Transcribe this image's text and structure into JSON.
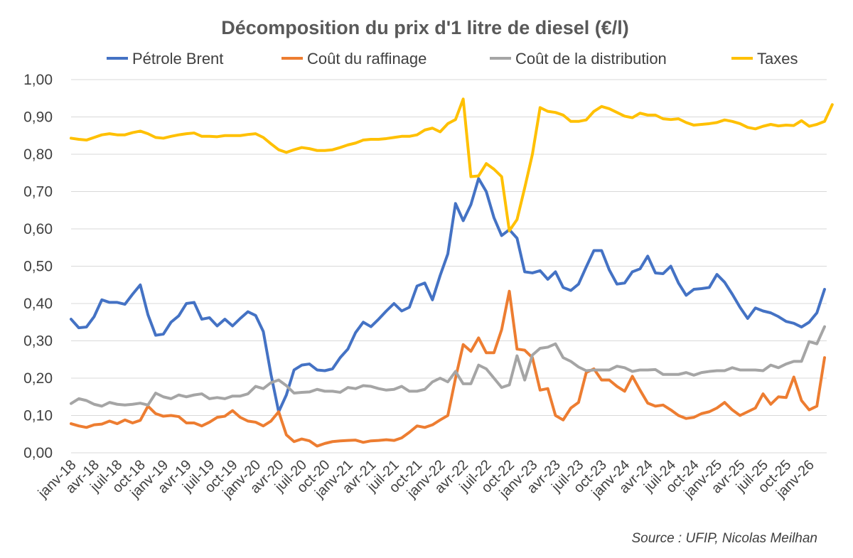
{
  "chart_data": {
    "type": "line",
    "title": "Décomposition du prix d'1 litre de diesel (€/l)",
    "xlabel": "",
    "ylabel": "",
    "ylim": [
      0,
      1
    ],
    "y_ticks": [
      "0,00",
      "0,10",
      "0,20",
      "0,30",
      "0,40",
      "0,50",
      "0,60",
      "0,70",
      "0,80",
      "0,90",
      "1,00"
    ],
    "y_tick_values": [
      0,
      0.1,
      0.2,
      0.3,
      0.4,
      0.5,
      0.6,
      0.7,
      0.8,
      0.9,
      1.0
    ],
    "grid": true,
    "legend_position": "top",
    "x_labels": [
      "janv-18",
      "avr-18",
      "juil-18",
      "oct-18",
      "janv-19",
      "avr-19",
      "juil-19",
      "oct-19",
      "janv-20",
      "avr-20",
      "juil-20",
      "oct-20",
      "janv-21",
      "avr-21",
      "juil-21",
      "oct-21",
      "janv-22",
      "avr-22",
      "juil-22",
      "oct-22",
      "janv-23",
      "avr-23",
      "juil-23",
      "oct-23",
      "janv-24",
      "avr-24",
      "juil-24",
      "oct-24",
      "janv-25",
      "avr-25",
      "juil-25",
      "oct-25",
      "janv-26"
    ],
    "x_label_step_months": 3,
    "n_points": 99,
    "series": [
      {
        "name": "Pétrole Brent",
        "color": "#4472c4",
        "values": [
          0.358,
          0.335,
          0.337,
          0.365,
          0.41,
          0.403,
          0.403,
          0.398,
          0.425,
          0.45,
          0.37,
          0.315,
          0.318,
          0.35,
          0.367,
          0.4,
          0.403,
          0.358,
          0.362,
          0.34,
          0.358,
          0.34,
          0.36,
          0.378,
          0.368,
          0.325,
          0.21,
          0.11,
          0.155,
          0.222,
          0.235,
          0.238,
          0.222,
          0.22,
          0.225,
          0.255,
          0.278,
          0.322,
          0.35,
          0.338,
          0.358,
          0.38,
          0.4,
          0.38,
          0.39,
          0.447,
          0.455,
          0.41,
          0.475,
          0.533,
          0.668,
          0.622,
          0.665,
          0.735,
          0.7,
          0.63,
          0.582,
          0.598,
          0.575,
          0.485,
          0.482,
          0.488,
          0.465,
          0.485,
          0.443,
          0.435,
          0.452,
          0.498,
          0.542,
          0.542,
          0.49,
          0.452,
          0.455,
          0.485,
          0.493,
          0.527,
          0.482,
          0.48,
          0.5,
          0.455,
          0.422,
          0.438,
          0.44,
          0.443,
          0.478,
          0.457,
          0.425,
          0.39,
          0.36,
          0.388,
          0.38,
          0.375,
          0.365,
          0.352,
          0.347,
          0.337,
          0.35,
          0.375,
          0.438
        ]
      },
      {
        "name": "Coût du raffinage",
        "color": "#ed7d31",
        "values": [
          0.078,
          0.072,
          0.068,
          0.075,
          0.077,
          0.085,
          0.078,
          0.088,
          0.08,
          0.087,
          0.125,
          0.105,
          0.098,
          0.1,
          0.097,
          0.08,
          0.08,
          0.072,
          0.082,
          0.095,
          0.098,
          0.113,
          0.095,
          0.085,
          0.082,
          0.072,
          0.085,
          0.11,
          0.048,
          0.03,
          0.037,
          0.032,
          0.018,
          0.025,
          0.03,
          0.032,
          0.033,
          0.034,
          0.028,
          0.032,
          0.033,
          0.035,
          0.033,
          0.04,
          0.055,
          0.072,
          0.068,
          0.075,
          0.088,
          0.1,
          0.2,
          0.29,
          0.272,
          0.308,
          0.268,
          0.268,
          0.33,
          0.433,
          0.278,
          0.275,
          0.255,
          0.168,
          0.172,
          0.1,
          0.088,
          0.12,
          0.135,
          0.215,
          0.225,
          0.195,
          0.195,
          0.178,
          0.165,
          0.205,
          0.168,
          0.133,
          0.125,
          0.128,
          0.115,
          0.1,
          0.092,
          0.095,
          0.105,
          0.11,
          0.12,
          0.135,
          0.115,
          0.1,
          0.11,
          0.12,
          0.158,
          0.13,
          0.15,
          0.148,
          0.203,
          0.14,
          0.115,
          0.125,
          0.255
        ]
      },
      {
        "name": "Coût de la distribution",
        "color": "#a5a5a5",
        "values": [
          0.132,
          0.145,
          0.14,
          0.13,
          0.125,
          0.135,
          0.13,
          0.128,
          0.13,
          0.133,
          0.128,
          0.16,
          0.15,
          0.145,
          0.155,
          0.15,
          0.155,
          0.158,
          0.145,
          0.148,
          0.145,
          0.152,
          0.152,
          0.158,
          0.178,
          0.172,
          0.188,
          0.195,
          0.18,
          0.16,
          0.162,
          0.163,
          0.17,
          0.165,
          0.165,
          0.162,
          0.175,
          0.172,
          0.18,
          0.178,
          0.172,
          0.168,
          0.17,
          0.178,
          0.165,
          0.165,
          0.17,
          0.19,
          0.2,
          0.19,
          0.218,
          0.185,
          0.185,
          0.235,
          0.225,
          0.2,
          0.175,
          0.182,
          0.26,
          0.195,
          0.262,
          0.28,
          0.283,
          0.292,
          0.255,
          0.245,
          0.23,
          0.22,
          0.222,
          0.222,
          0.222,
          0.232,
          0.228,
          0.218,
          0.222,
          0.222,
          0.223,
          0.21,
          0.21,
          0.21,
          0.215,
          0.208,
          0.215,
          0.218,
          0.22,
          0.22,
          0.228,
          0.222,
          0.222,
          0.222,
          0.22,
          0.235,
          0.228,
          0.238,
          0.245,
          0.245,
          0.298,
          0.292,
          0.338
        ]
      },
      {
        "name": "Taxes",
        "color": "#ffc000",
        "values": [
          0.843,
          0.84,
          0.838,
          0.845,
          0.852,
          0.855,
          0.852,
          0.852,
          0.858,
          0.862,
          0.855,
          0.845,
          0.843,
          0.848,
          0.852,
          0.855,
          0.857,
          0.848,
          0.848,
          0.847,
          0.85,
          0.85,
          0.85,
          0.853,
          0.855,
          0.845,
          0.828,
          0.812,
          0.805,
          0.812,
          0.818,
          0.815,
          0.81,
          0.81,
          0.812,
          0.818,
          0.825,
          0.83,
          0.838,
          0.84,
          0.84,
          0.842,
          0.845,
          0.848,
          0.848,
          0.852,
          0.865,
          0.87,
          0.86,
          0.882,
          0.893,
          0.948,
          0.74,
          0.742,
          0.775,
          0.76,
          0.74,
          0.595,
          0.625,
          0.71,
          0.8,
          0.925,
          0.915,
          0.912,
          0.905,
          0.888,
          0.888,
          0.892,
          0.915,
          0.928,
          0.922,
          0.912,
          0.902,
          0.898,
          0.91,
          0.905,
          0.905,
          0.895,
          0.893,
          0.895,
          0.885,
          0.878,
          0.88,
          0.882,
          0.885,
          0.892,
          0.888,
          0.882,
          0.872,
          0.868,
          0.875,
          0.88,
          0.876,
          0.878,
          0.877,
          0.89,
          0.875,
          0.88,
          0.888,
          0.933
        ]
      }
    ],
    "source": "Source : UFIP, Nicolas Meilhan"
  }
}
